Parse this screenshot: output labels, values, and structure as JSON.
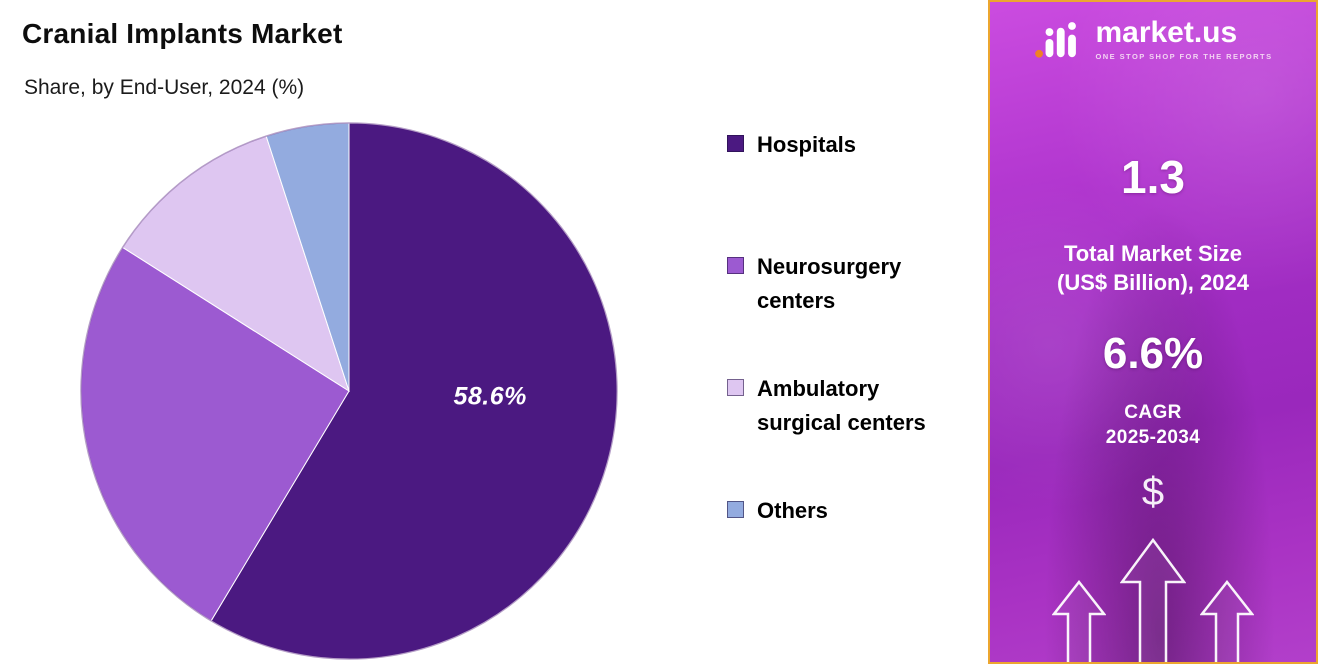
{
  "chart_data": {
    "type": "pie",
    "title": "Cranial Implants Market",
    "subtitle": "Share, by End-User, 2024 (%)",
    "categories": [
      "Hospitals",
      "Neurosurgery centers",
      "Ambulatory surgical centers",
      "Others"
    ],
    "values": [
      58.6,
      25.4,
      11.0,
      5.0
    ],
    "colors": [
      "#4b1981",
      "#9c5ad1",
      "#dec6f1",
      "#93abdf"
    ],
    "start_angle": "top",
    "direction": "clockwise",
    "legend_position": "right",
    "slice_labels": [
      {
        "slice_index": 0,
        "text": "58.6%"
      }
    ]
  },
  "sidebar": {
    "brand_name": "market.us",
    "brand_tagline": "ONE STOP SHOP FOR THE REPORTS",
    "market_size": {
      "value": "1.3",
      "label_line1": "Total Market Size",
      "label_line2": "(US$ Billion), 2024"
    },
    "cagr": {
      "value": "6.6%",
      "label_line1": "CAGR",
      "label_line2": "2025-2034"
    },
    "currency_symbol": "$"
  }
}
